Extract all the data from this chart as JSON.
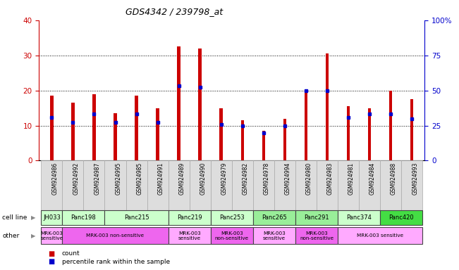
{
  "title": "GDS4342 / 239798_at",
  "samples": [
    "GSM924986",
    "GSM924992",
    "GSM924987",
    "GSM924995",
    "GSM924985",
    "GSM924991",
    "GSM924989",
    "GSM924990",
    "GSM924979",
    "GSM924982",
    "GSM924978",
    "GSM924994",
    "GSM924980",
    "GSM924983",
    "GSM924981",
    "GSM924984",
    "GSM924988",
    "GSM924993"
  ],
  "counts": [
    18.5,
    16.5,
    19.0,
    13.5,
    18.5,
    15.0,
    32.5,
    32.0,
    15.0,
    11.5,
    8.5,
    12.0,
    20.0,
    30.5,
    15.5,
    15.0,
    20.0,
    17.5
  ],
  "percentile_ranks": [
    31.0,
    27.5,
    33.5,
    27.5,
    33.5,
    27.5,
    53.5,
    52.5,
    26.0,
    25.0,
    20.0,
    25.0,
    50.0,
    50.0,
    31.0,
    33.5,
    33.5,
    30.0
  ],
  "cell_lines": [
    {
      "name": "JH033",
      "start": 0,
      "end": 1,
      "color": "#ccffcc"
    },
    {
      "name": "Panc198",
      "start": 1,
      "end": 3,
      "color": "#ccffcc"
    },
    {
      "name": "Panc215",
      "start": 3,
      "end": 6,
      "color": "#ccffcc"
    },
    {
      "name": "Panc219",
      "start": 6,
      "end": 8,
      "color": "#ccffcc"
    },
    {
      "name": "Panc253",
      "start": 8,
      "end": 10,
      "color": "#ccffcc"
    },
    {
      "name": "Panc265",
      "start": 10,
      "end": 12,
      "color": "#99ee99"
    },
    {
      "name": "Panc291",
      "start": 12,
      "end": 14,
      "color": "#99ee99"
    },
    {
      "name": "Panc374",
      "start": 14,
      "end": 16,
      "color": "#ccffcc"
    },
    {
      "name": "Panc420",
      "start": 16,
      "end": 18,
      "color": "#44dd44"
    }
  ],
  "other_groups": [
    {
      "name": "MRK-003\nsensitive",
      "start": 0,
      "end": 1,
      "color": "#ffaaff"
    },
    {
      "name": "MRK-003 non-sensitive",
      "start": 1,
      "end": 6,
      "color": "#ee66ee"
    },
    {
      "name": "MRK-003\nsensitive",
      "start": 6,
      "end": 8,
      "color": "#ffaaff"
    },
    {
      "name": "MRK-003\nnon-sensitive",
      "start": 8,
      "end": 10,
      "color": "#ee66ee"
    },
    {
      "name": "MRK-003\nsensitive",
      "start": 10,
      "end": 12,
      "color": "#ffaaff"
    },
    {
      "name": "MRK-003\nnon-sensitive",
      "start": 12,
      "end": 14,
      "color": "#ee66ee"
    },
    {
      "name": "MRK-003 sensitive",
      "start": 14,
      "end": 18,
      "color": "#ffaaff"
    }
  ],
  "ylim_left": [
    0,
    40
  ],
  "ylim_right": [
    0,
    100
  ],
  "yticks_left": [
    0,
    10,
    20,
    30,
    40
  ],
  "yticks_right": [
    0,
    25,
    50,
    75,
    100
  ],
  "bar_color": "#cc0000",
  "dot_color": "#0000cc",
  "left_tick_color": "#cc0000",
  "right_tick_color": "#0000cc",
  "grid_color": "#000000",
  "sample_box_color": "#dddddd",
  "title_fontsize": 9,
  "bar_width": 0.15
}
